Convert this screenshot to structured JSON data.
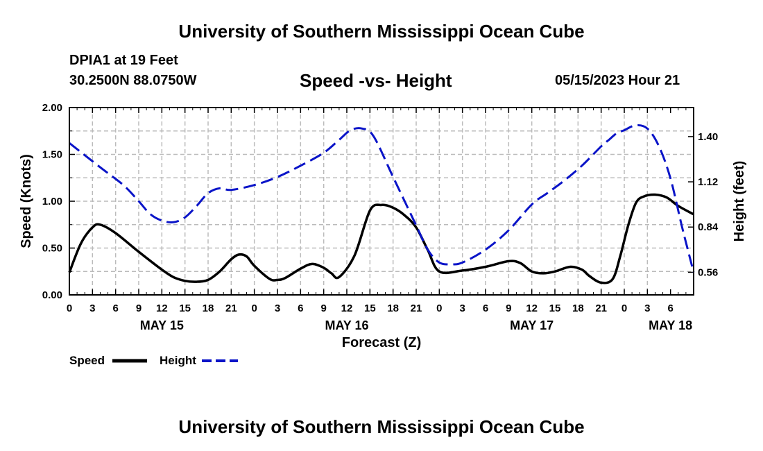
{
  "header": {
    "title": "University of Southern Mississippi Ocean Cube",
    "station": "DPIA1 at 19 Feet",
    "coordinates": "30.2500N  88.0750W",
    "datetime": "05/15/2023 Hour 21"
  },
  "footer": {
    "title": "University of Southern Mississippi Ocean Cube"
  },
  "colors": {
    "speed": "#000000",
    "height": "#0a14c8",
    "grid": "#bbbbbb"
  },
  "chart_data": {
    "type": "line",
    "title": "Speed -vs- Height",
    "xlabel": "Forecast (Z)",
    "ylabel": "Speed (Knots)",
    "y2label": "Height (feet)",
    "x_range_hours": [
      0,
      81
    ],
    "ylim": [
      0,
      2
    ],
    "y2lim": [
      0.42,
      1.58
    ],
    "yticks": [
      {
        "value": 0,
        "label": "0.00"
      },
      {
        "value": 0.5,
        "label": "0.50"
      },
      {
        "value": 1.0,
        "label": "1.00"
      },
      {
        "value": 1.5,
        "label": "1.50"
      },
      {
        "value": 2.0,
        "label": "2.00"
      }
    ],
    "y2ticks": [
      {
        "value": 0.56,
        "label": "0.56"
      },
      {
        "value": 0.84,
        "label": "0.84"
      },
      {
        "value": 1.12,
        "label": "1.12"
      },
      {
        "value": 1.4,
        "label": "1.40"
      }
    ],
    "xtick_labels": [
      "0",
      "3",
      "6",
      "9",
      "12",
      "15",
      "18",
      "21",
      "0",
      "3",
      "6",
      "9",
      "12",
      "15",
      "18",
      "21",
      "0",
      "3",
      "6",
      "9",
      "12",
      "15",
      "18",
      "21",
      "0",
      "3",
      "6"
    ],
    "day_labels": [
      {
        "hour": 12,
        "label": "MAY 15"
      },
      {
        "hour": 36,
        "label": "MAY 16"
      },
      {
        "hour": 60,
        "label": "MAY 17"
      },
      {
        "hour": 78,
        "label": "MAY 18"
      }
    ],
    "legend": [
      {
        "name": "Speed",
        "style": "solid"
      },
      {
        "name": "Height",
        "style": "dashed"
      }
    ],
    "series": [
      {
        "name": "Speed",
        "axis": "left",
        "x": [
          0,
          1.5,
          3,
          4,
          6,
          9,
          12,
          13.5,
          15,
          16.5,
          18,
          19.5,
          21,
          22,
          23,
          24,
          26,
          27,
          28,
          30,
          31.5,
          33,
          34,
          35,
          37,
          39,
          40.5,
          42,
          43.5,
          45,
          46.5,
          48,
          51,
          54,
          57,
          58.5,
          60,
          61.5,
          63,
          65,
          66.5,
          67.5,
          69,
          70.5,
          71.5,
          72.5,
          73.5,
          74.5,
          76,
          77.5,
          79,
          81
        ],
        "values": [
          0.24,
          0.55,
          0.72,
          0.75,
          0.66,
          0.46,
          0.27,
          0.19,
          0.15,
          0.14,
          0.16,
          0.25,
          0.38,
          0.43,
          0.41,
          0.31,
          0.17,
          0.16,
          0.18,
          0.28,
          0.33,
          0.29,
          0.23,
          0.19,
          0.42,
          0.9,
          0.96,
          0.93,
          0.85,
          0.72,
          0.48,
          0.25,
          0.26,
          0.3,
          0.36,
          0.34,
          0.25,
          0.23,
          0.25,
          0.3,
          0.27,
          0.2,
          0.13,
          0.17,
          0.42,
          0.74,
          0.98,
          1.05,
          1.07,
          1.04,
          0.95,
          0.86
        ]
      },
      {
        "name": "Height",
        "axis": "right",
        "x": [
          0,
          4,
          7,
          9,
          10.5,
          12,
          13.5,
          15,
          16.5,
          18,
          19.5,
          21,
          24,
          27,
          30,
          33,
          35,
          36.5,
          38,
          39.5,
          42,
          45,
          46.5,
          48,
          49.5,
          51,
          54,
          57,
          60,
          62,
          64,
          66.5,
          69,
          70,
          71,
          72,
          73.5,
          75,
          76.5,
          78,
          79.5,
          81
        ],
        "values": [
          1.36,
          1.21,
          1.1,
          1.0,
          0.92,
          0.88,
          0.87,
          0.9,
          0.97,
          1.05,
          1.08,
          1.07,
          1.1,
          1.15,
          1.22,
          1.3,
          1.38,
          1.44,
          1.45,
          1.4,
          1.15,
          0.85,
          0.7,
          0.62,
          0.61,
          0.62,
          0.7,
          0.82,
          0.98,
          1.05,
          1.12,
          1.22,
          1.34,
          1.38,
          1.42,
          1.44,
          1.47,
          1.45,
          1.34,
          1.14,
          0.84,
          0.56
        ]
      }
    ]
  }
}
